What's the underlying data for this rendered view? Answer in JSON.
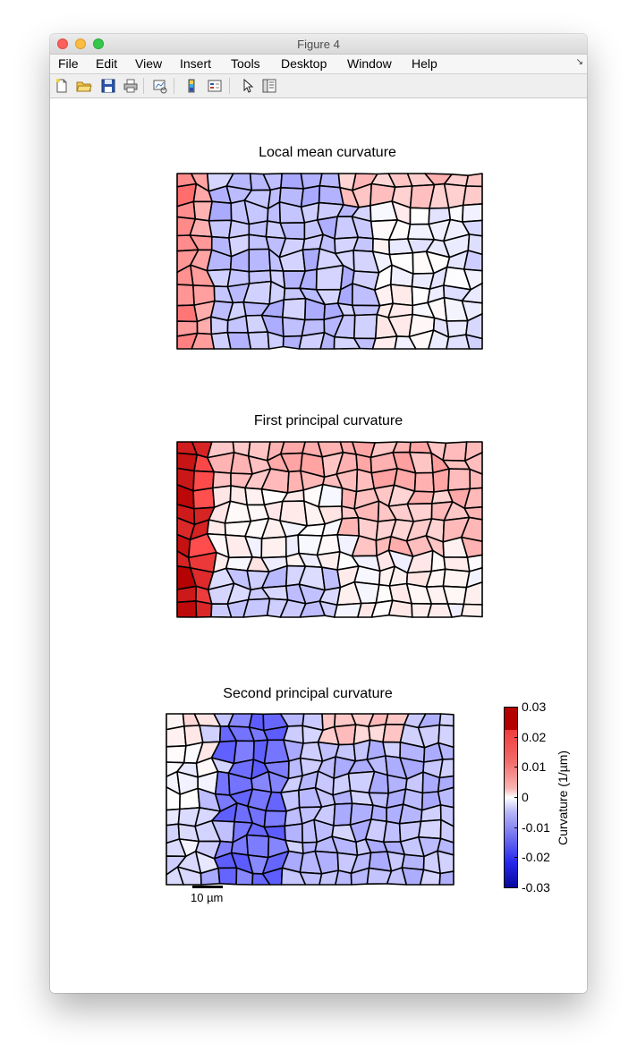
{
  "window": {
    "title": "Figure 4",
    "controls": [
      "close",
      "minimize",
      "zoom"
    ]
  },
  "menubar": {
    "items": [
      "File",
      "Edit",
      "View",
      "Insert",
      "Tools",
      "Desktop",
      "Window",
      "Help"
    ]
  },
  "toolbar": {
    "buttons": [
      {
        "name": "new-figure",
        "icon": "new-document-icon"
      },
      {
        "name": "open-file",
        "icon": "open-folder-icon"
      },
      {
        "name": "save-figure",
        "icon": "save-icon"
      },
      {
        "name": "print-figure",
        "icon": "print-icon"
      },
      {
        "name": "link-plot",
        "icon": "link-plot-icon"
      },
      {
        "name": "insert-colorbar",
        "icon": "colorbar-icon"
      },
      {
        "name": "insert-legend",
        "icon": "legend-icon"
      },
      {
        "name": "edit-plot",
        "icon": "pointer-arrow-icon"
      },
      {
        "name": "property-inspector",
        "icon": "plot-browser-icon"
      }
    ]
  },
  "figure": {
    "panels": [
      {
        "title": "Local mean curvature"
      },
      {
        "title": "First principal curvature"
      },
      {
        "title": "Second principal curvature"
      }
    ],
    "colorbar": {
      "label": "Curvature (1/µm)",
      "ticks": [
        "0.03",
        "0.02",
        "0.01",
        "0",
        "-0.01",
        "-0.02",
        "-0.03"
      ],
      "colormap": "red-white-blue",
      "limits": [
        -0.03,
        0.03
      ],
      "colors": {
        "max": "#b30000",
        "zero": "#ffffff",
        "min": "#08089c"
      }
    },
    "scalebar": {
      "label": "10 µm"
    }
  },
  "colors": {
    "cell_outline": "#000000",
    "background": "#ffffff"
  }
}
